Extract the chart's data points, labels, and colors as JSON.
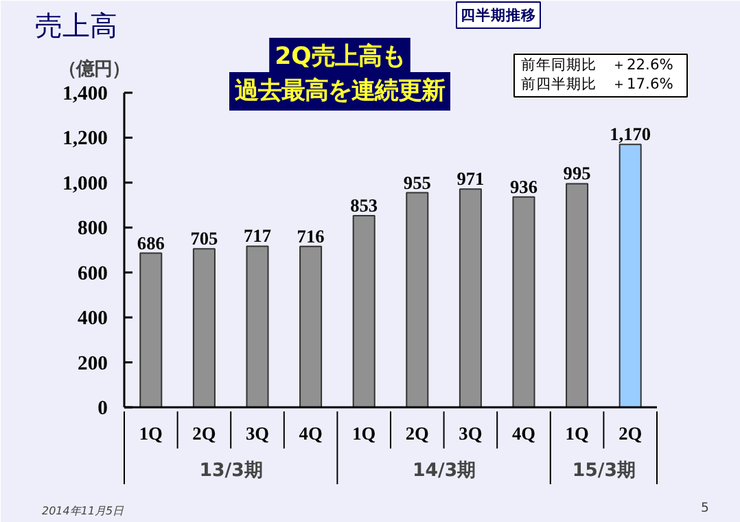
{
  "chart_data": {
    "type": "bar",
    "title": "売上高",
    "ylabel": "（億円）",
    "categories": [
      "1Q",
      "2Q",
      "3Q",
      "4Q",
      "1Q",
      "2Q",
      "3Q",
      "4Q",
      "1Q",
      "2Q"
    ],
    "values": [
      686,
      705,
      717,
      716,
      853,
      955,
      971,
      936,
      995,
      1170
    ],
    "colors": [
      "#919191",
      "#919191",
      "#919191",
      "#919191",
      "#919191",
      "#919191",
      "#919191",
      "#919191",
      "#919191",
      "#99ccff"
    ],
    "ylim": [
      0,
      1400
    ],
    "yticks": [
      0,
      200,
      400,
      600,
      800,
      {
        "value": 1000,
        "label": "1,000"
      },
      {
        "value": 1200,
        "label": "1,200"
      },
      {
        "value": 1400,
        "label": "1,400"
      }
    ],
    "grid": false,
    "value_labels": [
      "686",
      "705",
      "717",
      "716",
      "853",
      "955",
      "971",
      "936",
      "995",
      "1,170"
    ],
    "annotations": [
      "四半期推移",
      "2Q売上高も",
      "過去最高を連続更新",
      "前年同期比　＋22.6%",
      "前四半期比　＋17.6%",
      "13/3期",
      "14/3期",
      "15/3期",
      "2014年11月5日",
      "5"
    ]
  }
}
